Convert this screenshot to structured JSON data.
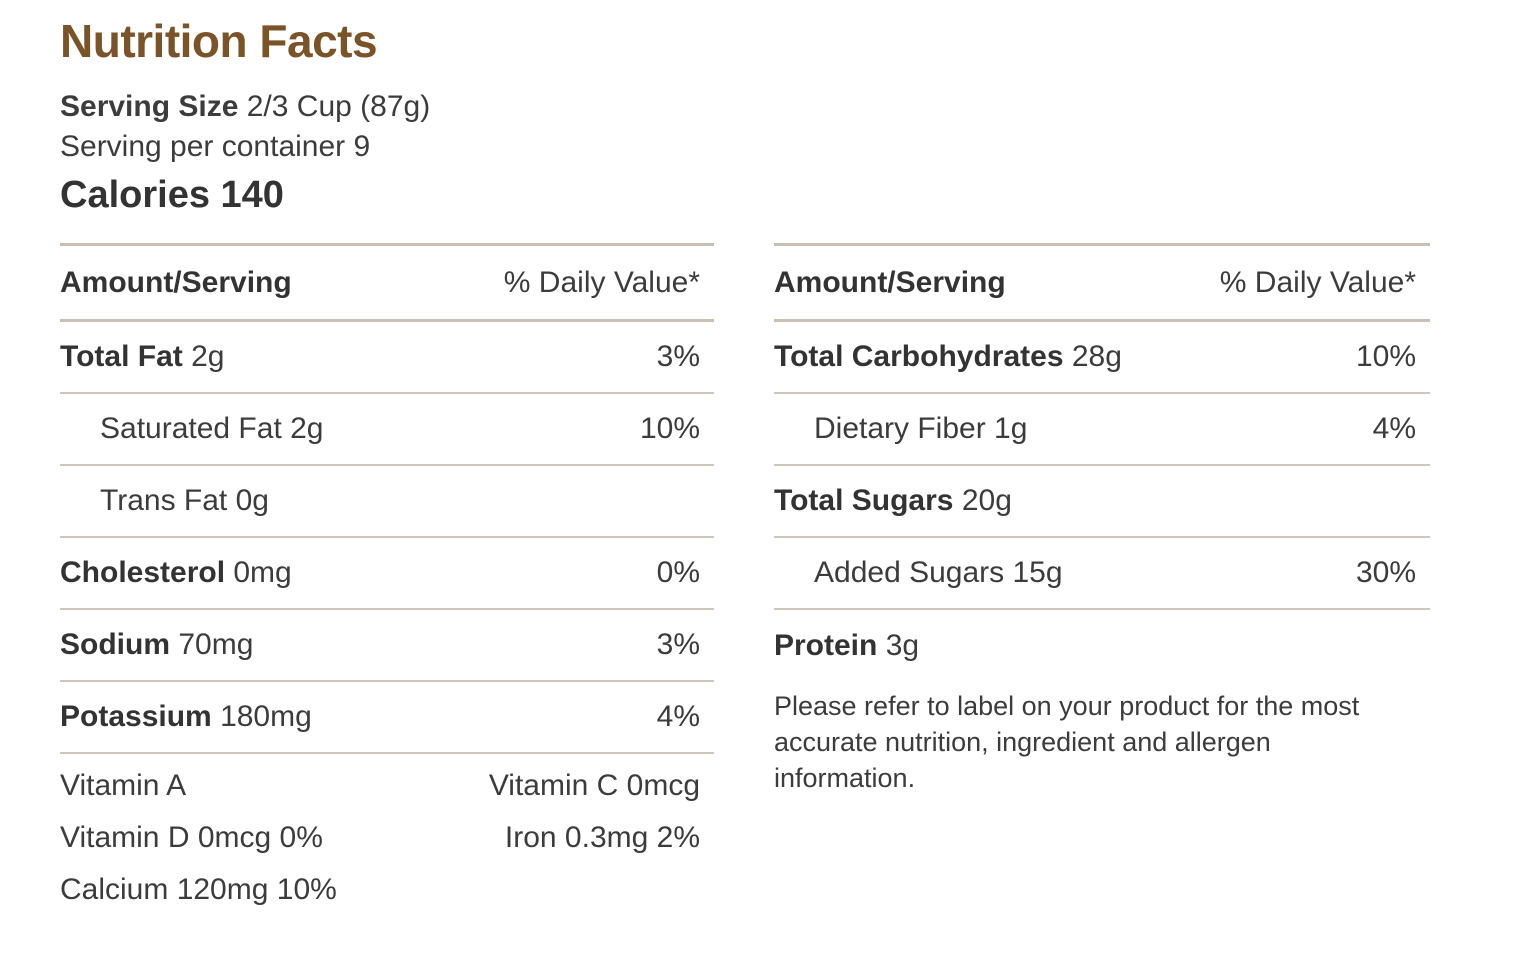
{
  "header": {
    "title": "Nutrition Facts",
    "serving_size_label": "Serving Size",
    "serving_size_value": "2/3 Cup (87g)",
    "servings_per_container": "Serving per container 9",
    "calories": "Calories 140"
  },
  "left_table": {
    "col_amount": "Amount/Serving",
    "col_dv": "% Daily Value*",
    "rows": [
      {
        "name": "Total Fat",
        "amount": "2g",
        "dv": "3%"
      },
      {
        "name": "Saturated Fat 2g",
        "amount": "",
        "dv": "10%"
      },
      {
        "name": "Trans Fat 0g",
        "amount": "",
        "dv": ""
      },
      {
        "name": "Cholesterol",
        "amount": "0mg",
        "dv": "0%"
      },
      {
        "name": "Sodium",
        "amount": "70mg",
        "dv": "3%"
      },
      {
        "name": "Potassium",
        "amount": "180mg",
        "dv": "4%"
      }
    ],
    "vitamins": {
      "vitamin_a": "Vitamin A",
      "vitamin_c": "Vitamin C 0mcg",
      "vitamin_d": "Vitamin D 0mcg 0%",
      "iron": "Iron 0.3mg 2%",
      "calcium": "Calcium 120mg 10%"
    }
  },
  "right_table": {
    "col_amount": "Amount/Serving",
    "col_dv": "% Daily Value*",
    "rows": [
      {
        "name": "Total Carbohydrates",
        "amount": "28g",
        "dv": "10%"
      },
      {
        "name": "Dietary Fiber 1g",
        "amount": "",
        "dv": "4%"
      },
      {
        "name": "Total Sugars",
        "amount": "20g",
        "dv": ""
      },
      {
        "name": "Added Sugars 15g",
        "amount": "",
        "dv": "30%"
      },
      {
        "name": "Protein",
        "amount": "3g",
        "dv": ""
      }
    ]
  },
  "note": "Please refer to label on your product for the most accurate nutrition, ingredient and allergen information.",
  "colors": {
    "title": "#7a5428",
    "rule": "#c9bfb2",
    "text": "#3c3c3c"
  }
}
